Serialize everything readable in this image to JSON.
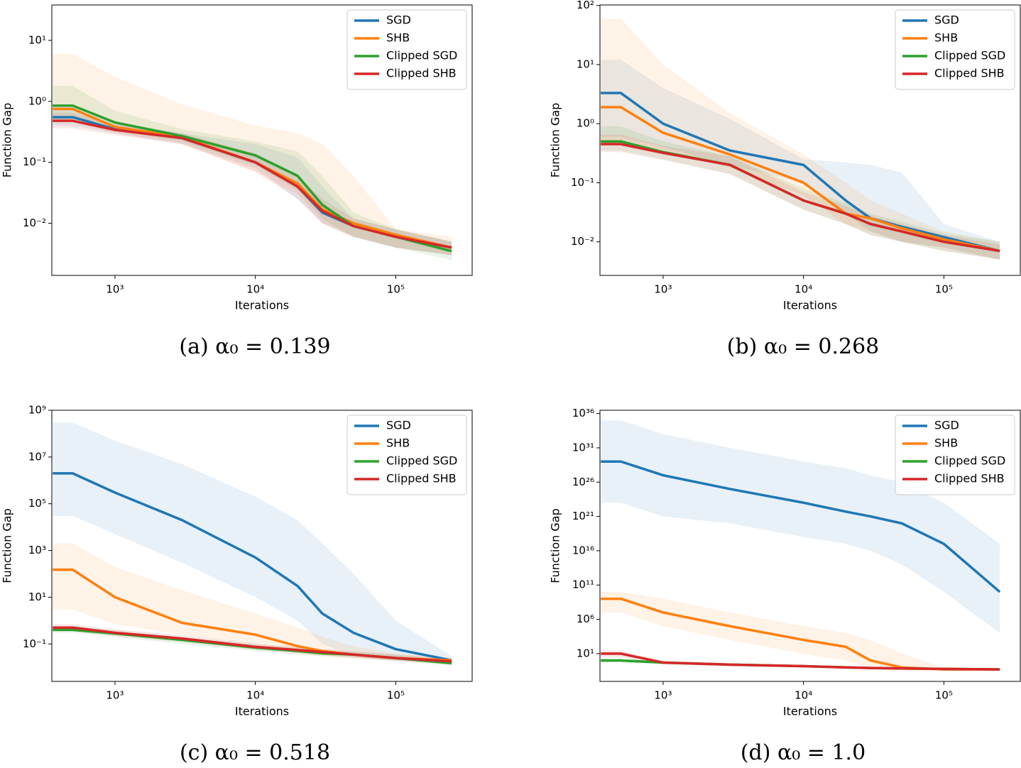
{
  "chart_data": [
    {
      "type": "line",
      "caption": "(a) α₀ = 0.139",
      "x_label": "Iterations",
      "y_label": "Function Gap",
      "x_log": true,
      "y_log": true,
      "legend": "upper right",
      "xlim": [
        355,
        350000
      ],
      "ylim": [
        0.0014,
        38
      ],
      "xticks": [
        {
          "value": 1000,
          "label": "10³"
        },
        {
          "value": 10000,
          "label": "10⁴"
        },
        {
          "value": 100000,
          "label": "10⁵"
        }
      ],
      "yticks": [
        {
          "value": 0.01,
          "label": "10⁻²"
        },
        {
          "value": 0.1,
          "label": "10⁻¹"
        },
        {
          "value": 1,
          "label": "10⁰"
        },
        {
          "value": 10,
          "label": "10¹"
        }
      ],
      "x": [
        360,
        500,
        1000,
        3000,
        10000,
        20000,
        30000,
        50000,
        100000,
        250000
      ],
      "series": [
        {
          "name": "SGD",
          "color": "#1f77b4",
          "values": [
            0.55,
            0.55,
            0.35,
            0.25,
            0.1,
            0.04,
            0.015,
            0.009,
            0.006,
            0.004
          ],
          "lower": [
            0.4,
            0.4,
            0.3,
            0.2,
            0.08,
            0.025,
            0.01,
            0.006,
            0.004,
            0.003
          ],
          "upper": [
            0.75,
            0.75,
            0.45,
            0.3,
            0.2,
            0.12,
            0.04,
            0.012,
            0.008,
            0.005
          ]
        },
        {
          "name": "SHB",
          "color": "#ff7f0e",
          "values": [
            0.75,
            0.75,
            0.38,
            0.26,
            0.1,
            0.045,
            0.017,
            0.01,
            0.0065,
            0.004
          ],
          "lower": [
            0.45,
            0.45,
            0.3,
            0.2,
            0.07,
            0.03,
            0.01,
            0.006,
            0.004,
            0.003
          ],
          "upper": [
            6,
            6,
            2.5,
            0.9,
            0.4,
            0.3,
            0.2,
            0.06,
            0.008,
            0.006
          ]
        },
        {
          "name": "Clipped SGD",
          "color": "#2ca02c",
          "values": [
            0.85,
            0.85,
            0.45,
            0.27,
            0.13,
            0.06,
            0.02,
            0.009,
            0.006,
            0.0035
          ],
          "lower": [
            0.45,
            0.45,
            0.33,
            0.22,
            0.09,
            0.035,
            0.012,
            0.006,
            0.004,
            0.0025
          ],
          "upper": [
            1.8,
            1.8,
            0.7,
            0.35,
            0.22,
            0.15,
            0.06,
            0.015,
            0.008,
            0.005
          ]
        },
        {
          "name": "Clipped SHB",
          "color": "#d62728",
          "values": [
            0.48,
            0.48,
            0.34,
            0.25,
            0.1,
            0.04,
            0.016,
            0.009,
            0.006,
            0.004
          ],
          "lower": [
            0.36,
            0.36,
            0.28,
            0.2,
            0.07,
            0.025,
            0.01,
            0.006,
            0.004,
            0.003
          ],
          "upper": [
            0.65,
            0.65,
            0.42,
            0.3,
            0.14,
            0.06,
            0.025,
            0.012,
            0.008,
            0.005
          ]
        }
      ]
    },
    {
      "type": "line",
      "caption": "(b) α₀ = 0.268",
      "x_label": "Iterations",
      "y_label": "Function Gap",
      "x_log": true,
      "y_log": true,
      "legend": "upper right",
      "xlim": [
        355,
        350000
      ],
      "ylim": [
        0.0027,
        102
      ],
      "xticks": [
        {
          "value": 1000,
          "label": "10³"
        },
        {
          "value": 10000,
          "label": "10⁴"
        },
        {
          "value": 100000,
          "label": "10⁵"
        }
      ],
      "yticks": [
        {
          "value": 0.01,
          "label": "10⁻²"
        },
        {
          "value": 0.1,
          "label": "10⁻¹"
        },
        {
          "value": 1,
          "label": "10⁰"
        },
        {
          "value": 10,
          "label": "10¹"
        },
        {
          "value": 100,
          "label": "10²"
        }
      ],
      "x": [
        360,
        500,
        1000,
        3000,
        10000,
        20000,
        30000,
        50000,
        100000,
        250000
      ],
      "series": [
        {
          "name": "SGD",
          "color": "#1f77b4",
          "values": [
            3.3,
            3.3,
            1.0,
            0.35,
            0.2,
            0.05,
            0.025,
            0.018,
            0.012,
            0.007
          ],
          "lower": [
            0.6,
            0.6,
            0.4,
            0.2,
            0.1,
            0.03,
            0.015,
            0.01,
            0.008,
            0.005
          ],
          "upper": [
            12,
            12,
            4,
            1.2,
            0.25,
            0.22,
            0.2,
            0.15,
            0.02,
            0.01
          ]
        },
        {
          "name": "SHB",
          "color": "#ff7f0e",
          "values": [
            1.9,
            1.9,
            0.7,
            0.3,
            0.1,
            0.03,
            0.025,
            0.017,
            0.011,
            0.007
          ],
          "lower": [
            0.5,
            0.5,
            0.35,
            0.18,
            0.06,
            0.02,
            0.015,
            0.01,
            0.008,
            0.005
          ],
          "upper": [
            60,
            60,
            10,
            1.5,
            0.3,
            0.1,
            0.05,
            0.03,
            0.015,
            0.01
          ]
        },
        {
          "name": "Clipped SGD",
          "color": "#2ca02c",
          "values": [
            0.5,
            0.5,
            0.33,
            0.2,
            0.05,
            0.03,
            0.02,
            0.015,
            0.01,
            0.007
          ],
          "lower": [
            0.35,
            0.35,
            0.25,
            0.14,
            0.035,
            0.02,
            0.013,
            0.01,
            0.007,
            0.005
          ],
          "upper": [
            0.9,
            0.9,
            0.5,
            0.28,
            0.08,
            0.045,
            0.03,
            0.022,
            0.014,
            0.01
          ]
        },
        {
          "name": "Clipped SHB",
          "color": "#d62728",
          "values": [
            0.45,
            0.45,
            0.32,
            0.2,
            0.05,
            0.03,
            0.02,
            0.015,
            0.01,
            0.007
          ],
          "lower": [
            0.33,
            0.33,
            0.24,
            0.14,
            0.035,
            0.02,
            0.013,
            0.01,
            0.007,
            0.005
          ],
          "upper": [
            0.65,
            0.65,
            0.42,
            0.28,
            0.07,
            0.04,
            0.028,
            0.02,
            0.013,
            0.009
          ]
        }
      ]
    },
    {
      "type": "line",
      "caption": "(c) α₀ = 0.518",
      "x_label": "Iterations",
      "y_label": "Function Gap",
      "x_log": true,
      "y_log": true,
      "legend": "upper right",
      "xlim": [
        355,
        350000
      ],
      "ylim": [
        0.0025,
        1000000000
      ],
      "xticks": [
        {
          "value": 1000,
          "label": "10³"
        },
        {
          "value": 10000,
          "label": "10⁴"
        },
        {
          "value": 100000,
          "label": "10⁵"
        }
      ],
      "yticks": [
        {
          "value": 0.1,
          "label": "10⁻¹"
        },
        {
          "value": 10,
          "label": "10¹"
        },
        {
          "value": 1000,
          "label": "10³"
        },
        {
          "value": 100000,
          "label": "10⁵"
        },
        {
          "value": 10000000,
          "label": "10⁷"
        },
        {
          "value": 1000000000,
          "label": "10⁹"
        }
      ],
      "x": [
        360,
        500,
        1000,
        3000,
        10000,
        20000,
        30000,
        50000,
        100000,
        250000
      ],
      "series": [
        {
          "name": "SGD",
          "color": "#1f77b4",
          "values": [
            2000000,
            2000000,
            300000,
            20000,
            500,
            30,
            2,
            0.3,
            0.06,
            0.02
          ],
          "lower": [
            30000,
            30000,
            5000,
            300,
            10,
            1,
            0.1,
            0.03,
            0.02,
            0.015
          ],
          "upper": [
            300000000,
            300000000,
            50000000,
            5000000,
            200000,
            20000,
            2000,
            100,
            1,
            0.03
          ]
        },
        {
          "name": "SHB",
          "color": "#ff7f0e",
          "values": [
            150,
            150,
            10,
            0.8,
            0.25,
            0.08,
            0.05,
            0.035,
            0.025,
            0.02
          ],
          "lower": [
            3,
            3,
            0.7,
            0.25,
            0.08,
            0.04,
            0.03,
            0.025,
            0.02,
            0.015
          ],
          "upper": [
            2000,
            2000,
            200,
            20,
            2,
            0.5,
            0.2,
            0.08,
            0.04,
            0.025
          ]
        },
        {
          "name": "Clipped SGD",
          "color": "#2ca02c",
          "values": [
            0.4,
            0.4,
            0.28,
            0.15,
            0.07,
            0.05,
            0.04,
            0.035,
            0.025,
            0.015
          ],
          "lower": [
            0.3,
            0.3,
            0.2,
            0.1,
            0.05,
            0.035,
            0.03,
            0.025,
            0.018,
            0.012
          ],
          "upper": [
            0.6,
            0.6,
            0.4,
            0.2,
            0.1,
            0.07,
            0.055,
            0.045,
            0.035,
            0.02
          ]
        },
        {
          "name": "Clipped SHB",
          "color": "#d62728",
          "values": [
            0.5,
            0.5,
            0.3,
            0.17,
            0.075,
            0.055,
            0.045,
            0.035,
            0.025,
            0.018
          ],
          "lower": [
            0.35,
            0.35,
            0.22,
            0.12,
            0.055,
            0.04,
            0.033,
            0.026,
            0.019,
            0.013
          ],
          "upper": [
            0.7,
            0.7,
            0.42,
            0.24,
            0.1,
            0.075,
            0.06,
            0.048,
            0.035,
            0.024
          ]
        }
      ]
    },
    {
      "type": "line",
      "caption": "(d) α₀ = 1.0",
      "x_label": "Iterations",
      "y_label": "Function Gap",
      "x_log": true,
      "y_log": true,
      "legend": "upper right",
      "xlim": [
        355,
        350000
      ],
      "ylim": [
        0.0009,
        3e+36
      ],
      "xticks": [
        {
          "value": 1000,
          "label": "10³"
        },
        {
          "value": 10000,
          "label": "10⁴"
        },
        {
          "value": 100000,
          "label": "10⁵"
        }
      ],
      "yticks": [
        {
          "value": 10,
          "label": "10¹"
        },
        {
          "value": 1000000,
          "label": "10⁶"
        },
        {
          "value": 100000000000.0,
          "label": "10¹¹"
        },
        {
          "value": 1e+16,
          "label": "10¹⁶"
        },
        {
          "value": 1e+21,
          "label": "10²¹"
        },
        {
          "value": 1e+26,
          "label": "10²⁶"
        },
        {
          "value": 1e+31,
          "label": "10³¹"
        },
        {
          "value": 1e+36,
          "label": "10³⁶"
        }
      ],
      "x": [
        360,
        500,
        1000,
        3000,
        10000,
        20000,
        30000,
        50000,
        100000,
        250000
      ],
      "series": [
        {
          "name": "SGD",
          "color": "#1f77b4",
          "values": [
            1e+29,
            1e+29,
            1e+27,
            1e+25,
            1e+23,
            5e+21,
            1e+21,
            1e+20,
            1e+17,
            10000000000.0
          ],
          "lower": [
            1e+23,
            1e+23,
            1e+21,
            1e+20,
            1e+18,
            1e+17,
            1e+16,
            100000000000000.0,
            10000000000.0,
            10000
          ],
          "upper": [
            1e+35,
            1e+35,
            1e+33,
            1e+31,
            1e+29,
            1e+28,
            1e+27,
            1e+26,
            1e+23,
            1e+17
          ]
        },
        {
          "name": "SHB",
          "color": "#ff7f0e",
          "values": [
            1000000000,
            1000000000,
            10000000,
            100000,
            1000,
            100,
            1,
            0.1,
            0.05,
            0.05
          ],
          "lower": [
            10000000,
            10000000,
            100000,
            1000,
            10,
            1,
            0.1,
            0.03,
            0.03,
            0.03
          ],
          "upper": [
            10000000000,
            10000000000,
            1000000000,
            10000000,
            100000,
            10000,
            1000,
            10,
            0.1,
            0.08
          ]
        },
        {
          "name": "Clipped SGD",
          "color": "#2ca02c",
          "values": [
            1,
            1,
            0.5,
            0.25,
            0.15,
            0.1,
            0.08,
            0.07,
            0.06,
            0.05
          ],
          "lower": [
            0.5,
            0.5,
            0.3,
            0.15,
            0.1,
            0.07,
            0.06,
            0.05,
            0.045,
            0.04
          ],
          "upper": [
            2,
            2,
            0.8,
            0.4,
            0.22,
            0.15,
            0.11,
            0.09,
            0.08,
            0.065
          ]
        },
        {
          "name": "Clipped SHB",
          "color": "#d62728",
          "values": [
            10,
            10,
            0.5,
            0.25,
            0.15,
            0.1,
            0.08,
            0.07,
            0.06,
            0.05
          ],
          "lower": [
            3,
            3,
            0.3,
            0.15,
            0.1,
            0.07,
            0.06,
            0.05,
            0.045,
            0.04
          ],
          "upper": [
            30,
            30,
            0.8,
            0.4,
            0.22,
            0.15,
            0.11,
            0.09,
            0.08,
            0.065
          ]
        }
      ]
    }
  ]
}
